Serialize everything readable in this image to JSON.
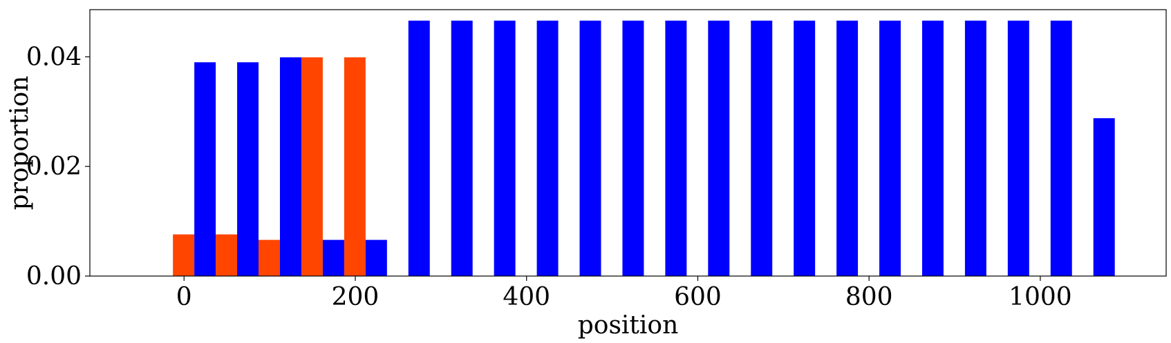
{
  "chart_data": {
    "type": "bar",
    "xlabel": "position",
    "ylabel": "proportion",
    "xlim": [
      -110,
      1147
    ],
    "ylim": [
      0,
      0.0486
    ],
    "xticks": [
      0,
      200,
      400,
      600,
      800,
      1000
    ],
    "xtick_labels": [
      "0",
      "200",
      "400",
      "600",
      "800",
      "1000"
    ],
    "yticks": [
      0,
      0.02,
      0.04
    ],
    "ytick_labels": [
      "0.00",
      "0.02",
      "0.04"
    ],
    "bin_width": 25,
    "grid": false,
    "legend": null,
    "series": [
      {
        "color": "#FF4500",
        "bins": [
          {
            "x": -13,
            "value": 0.0076
          },
          {
            "x": 37,
            "value": 0.0076
          },
          {
            "x": 87,
            "value": 0.0066
          },
          {
            "x": 137,
            "value": 0.0399
          },
          {
            "x": 187,
            "value": 0.0399
          }
        ]
      },
      {
        "color": "#0000FF",
        "bins": [
          {
            "x": 12,
            "value": 0.039
          },
          {
            "x": 62,
            "value": 0.039
          },
          {
            "x": 112,
            "value": 0.0399
          },
          {
            "x": 162,
            "value": 0.0066
          },
          {
            "x": 212,
            "value": 0.0066
          },
          {
            "x": 262,
            "value": 0.0466
          },
          {
            "x": 312,
            "value": 0.0466
          },
          {
            "x": 362,
            "value": 0.0466
          },
          {
            "x": 412,
            "value": 0.0466
          },
          {
            "x": 462,
            "value": 0.0466
          },
          {
            "x": 512,
            "value": 0.0466
          },
          {
            "x": 562,
            "value": 0.0466
          },
          {
            "x": 612,
            "value": 0.0466
          },
          {
            "x": 662,
            "value": 0.0466
          },
          {
            "x": 712,
            "value": 0.0466
          },
          {
            "x": 762,
            "value": 0.0466
          },
          {
            "x": 812,
            "value": 0.0466
          },
          {
            "x": 862,
            "value": 0.0466
          },
          {
            "x": 912,
            "value": 0.0466
          },
          {
            "x": 962,
            "value": 0.0466
          },
          {
            "x": 1012,
            "value": 0.0466
          },
          {
            "x": 1062,
            "value": 0.0288
          }
        ]
      }
    ]
  }
}
